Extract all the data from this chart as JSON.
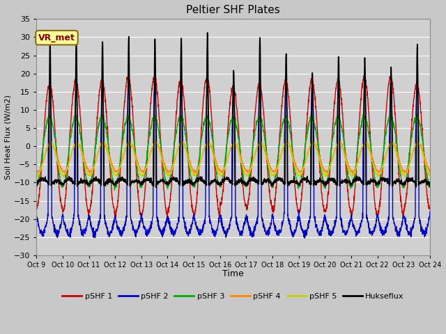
{
  "title": "Peltier SHF Plates",
  "xlabel": "Time",
  "ylabel": "Soil Heat Flux (W/m2)",
  "ylim": [
    -30,
    35
  ],
  "yticks": [
    -30,
    -25,
    -20,
    -15,
    -10,
    -5,
    0,
    5,
    10,
    15,
    20,
    25,
    30,
    35
  ],
  "annotation": "VR_met",
  "xtick_labels": [
    "Oct 9",
    "Oct 10",
    "Oct 11",
    "Oct 12",
    "Oct 13",
    "Oct 14",
    "Oct 15",
    "Oct 16",
    "Oct 17",
    "Oct 18",
    "Oct 19",
    "Oct 20",
    "Oct 21",
    "Oct 22",
    "Oct 23",
    "Oct 24"
  ],
  "series_colors": [
    "#cc0000",
    "#0000cc",
    "#00aa00",
    "#ff8800",
    "#cccc00",
    "#000000"
  ],
  "series_labels": [
    "pSHF 1",
    "pSHF 2",
    "pSHF 3",
    "pSHF 4",
    "pSHF 5",
    "Hukseflux"
  ],
  "series_linewidths": [
    1.0,
    1.0,
    1.0,
    1.0,
    1.0,
    1.2
  ],
  "fig_bg_color": "#c8c8c8",
  "plot_bg_color": "#d0d0d0",
  "grid_color": "#ffffff",
  "n_days": 15,
  "points_per_day": 144
}
